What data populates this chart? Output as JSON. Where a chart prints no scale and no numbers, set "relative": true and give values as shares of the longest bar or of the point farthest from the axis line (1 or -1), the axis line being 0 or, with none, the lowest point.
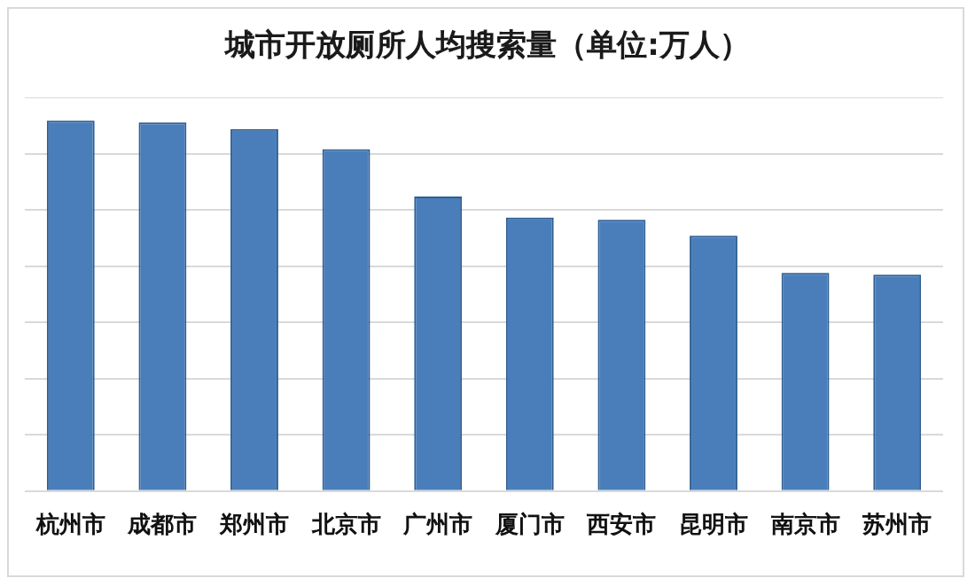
{
  "chart_data": {
    "type": "bar",
    "title": "城市开放厕所人均搜索量（单位:万人）",
    "categories": [
      "杭州市",
      "成都市",
      "郑州市",
      "北京市",
      "广州市",
      "厦门市",
      "西安市",
      "昆明市",
      "南京市",
      "苏州市"
    ],
    "values": [
      1,
      0.995,
      0.977,
      0.923,
      0.795,
      0.738,
      0.732,
      0.689,
      0.589,
      0.584
    ],
    "relative": true,
    "color": "#4a7ebb",
    "grid": "y",
    "legend": false
  }
}
